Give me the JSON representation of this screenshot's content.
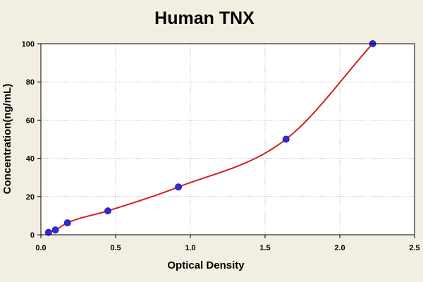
{
  "chart_data": {
    "type": "scatter",
    "title": "Human TNX",
    "xlabel": "Optical Density",
    "ylabel": "Concentration(ng/mL)",
    "xlim": [
      0.0,
      2.5
    ],
    "ylim": [
      0,
      100
    ],
    "x_ticks": [
      "0.0",
      "0.5",
      "1.0",
      "1.5",
      "2.0",
      "2.5"
    ],
    "y_ticks": [
      "0",
      "20",
      "40",
      "60",
      "80",
      "100"
    ],
    "grid": true,
    "fit_curve": true,
    "colors": {
      "points": "#2a2ae0",
      "point_edge": "#3a1aa0",
      "curve": "#d42020",
      "plot_background": "#ffffff",
      "figure_background": "#f2efe2",
      "axes": "#000000"
    },
    "series": [
      {
        "x": [
          0.051,
          0.097,
          0.178,
          0.448,
          0.92,
          1.64,
          2.22
        ],
        "y": [
          1.25,
          2.5,
          6.25,
          12.5,
          25,
          50,
          100
        ]
      }
    ]
  }
}
